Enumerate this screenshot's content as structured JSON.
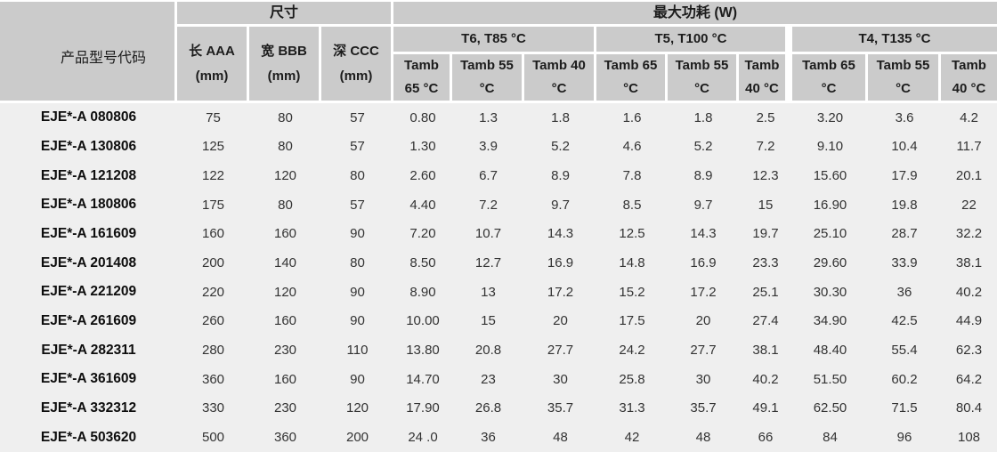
{
  "table": {
    "header": {
      "product_col": "产品型号代码",
      "dims_group": "尺寸",
      "power_group": "最大功耗  (W)",
      "dim_cols": [
        {
          "line1": "长 AAA",
          "line2": "(mm)"
        },
        {
          "line1": "宽 BBB",
          "line2": "(mm)"
        },
        {
          "line1": "深  CCC",
          "line2": "(mm)"
        }
      ],
      "temp_groups": [
        {
          "label": "T6, T85 °C"
        },
        {
          "label": "T5, T100 °C"
        },
        {
          "label": "T4, T135 °C"
        }
      ],
      "tamb_cols": [
        {
          "line1": "Tamb",
          "line2": "65 °C"
        },
        {
          "line1": "Tamb 55",
          "line2": "°C"
        },
        {
          "line1": "Tamb 40",
          "line2": "°C"
        },
        {
          "line1": "Tamb 65",
          "line2": "°C"
        },
        {
          "line1": "Tamb 55",
          "line2": "°C"
        },
        {
          "line1": "Tamb",
          "line2": "40 °C"
        },
        {
          "line1": "Tamb 65",
          "line2": "°C"
        },
        {
          "line1": "Tamb 55",
          "line2": "°C"
        },
        {
          "line1": "Tamb",
          "line2": "40 °C"
        }
      ]
    },
    "rows": [
      {
        "model": "EJE*-A 080806",
        "values": [
          "75",
          "80",
          "57",
          "0.80",
          "1.3",
          "1.8",
          "1.6",
          "1.8",
          "2.5",
          "3.20",
          "3.6",
          "4.2"
        ]
      },
      {
        "model": "EJE*-A 130806",
        "values": [
          "125",
          "80",
          "57",
          "1.30",
          "3.9",
          "5.2",
          "4.6",
          "5.2",
          "7.2",
          "9.10",
          "10.4",
          "11.7"
        ]
      },
      {
        "model": "EJE*-A 121208",
        "values": [
          "122",
          "120",
          "80",
          "2.60",
          "6.7",
          "8.9",
          "7.8",
          "8.9",
          "12.3",
          "15.60",
          "17.9",
          "20.1"
        ]
      },
      {
        "model": "EJE*-A 180806",
        "values": [
          "175",
          "80",
          "57",
          "4.40",
          "7.2",
          "9.7",
          "8.5",
          "9.7",
          "15",
          "16.90",
          "19.8",
          "22"
        ]
      },
      {
        "model": "EJE*-A 161609",
        "values": [
          "160",
          "160",
          "90",
          "7.20",
          "10.7",
          "14.3",
          "12.5",
          "14.3",
          "19.7",
          "25.10",
          "28.7",
          "32.2"
        ]
      },
      {
        "model": "EJE*-A 201408",
        "values": [
          "200",
          "140",
          "80",
          "8.50",
          "12.7",
          "16.9",
          "14.8",
          "16.9",
          "23.3",
          "29.60",
          "33.9",
          "38.1"
        ]
      },
      {
        "model": "EJE*-A 221209",
        "values": [
          "220",
          "120",
          "90",
          "8.90",
          "13",
          "17.2",
          "15.2",
          "17.2",
          "25.1",
          "30.30",
          "36",
          "40.2"
        ]
      },
      {
        "model": "EJE*-A 261609",
        "values": [
          "260",
          "160",
          "90",
          "10.00",
          "15",
          "20",
          "17.5",
          "20",
          "27.4",
          "34.90",
          "42.5",
          "44.9"
        ]
      },
      {
        "model": "EJE*-A 282311",
        "values": [
          "280",
          "230",
          "110",
          "13.80",
          "20.8",
          "27.7",
          "24.2",
          "27.7",
          "38.1",
          "48.40",
          "55.4",
          "62.3"
        ]
      },
      {
        "model": "EJE*-A 361609",
        "values": [
          "360",
          "160",
          "90",
          "14.70",
          "23",
          "30",
          "25.8",
          "30",
          "40.2",
          "51.50",
          "60.2",
          "64.2"
        ]
      },
      {
        "model": "EJE*-A 332312",
        "values": [
          "330",
          "230",
          "120",
          "17.90",
          "26.8",
          "35.7",
          "31.3",
          "35.7",
          "49.1",
          "62.50",
          "71.5",
          "80.4"
        ]
      },
      {
        "model": "EJE*-A 503620",
        "values": [
          "500",
          "360",
          "200",
          "24 .0",
          "36",
          "48",
          "42",
          "48",
          "66",
          "84",
          "96",
          "108"
        ]
      }
    ]
  },
  "colors": {
    "header_bg": "#cbcbcb",
    "body_bg": "#efefef",
    "gap": "#ffffff",
    "header_text": "#1c1c1c",
    "body_text": "#333333"
  }
}
